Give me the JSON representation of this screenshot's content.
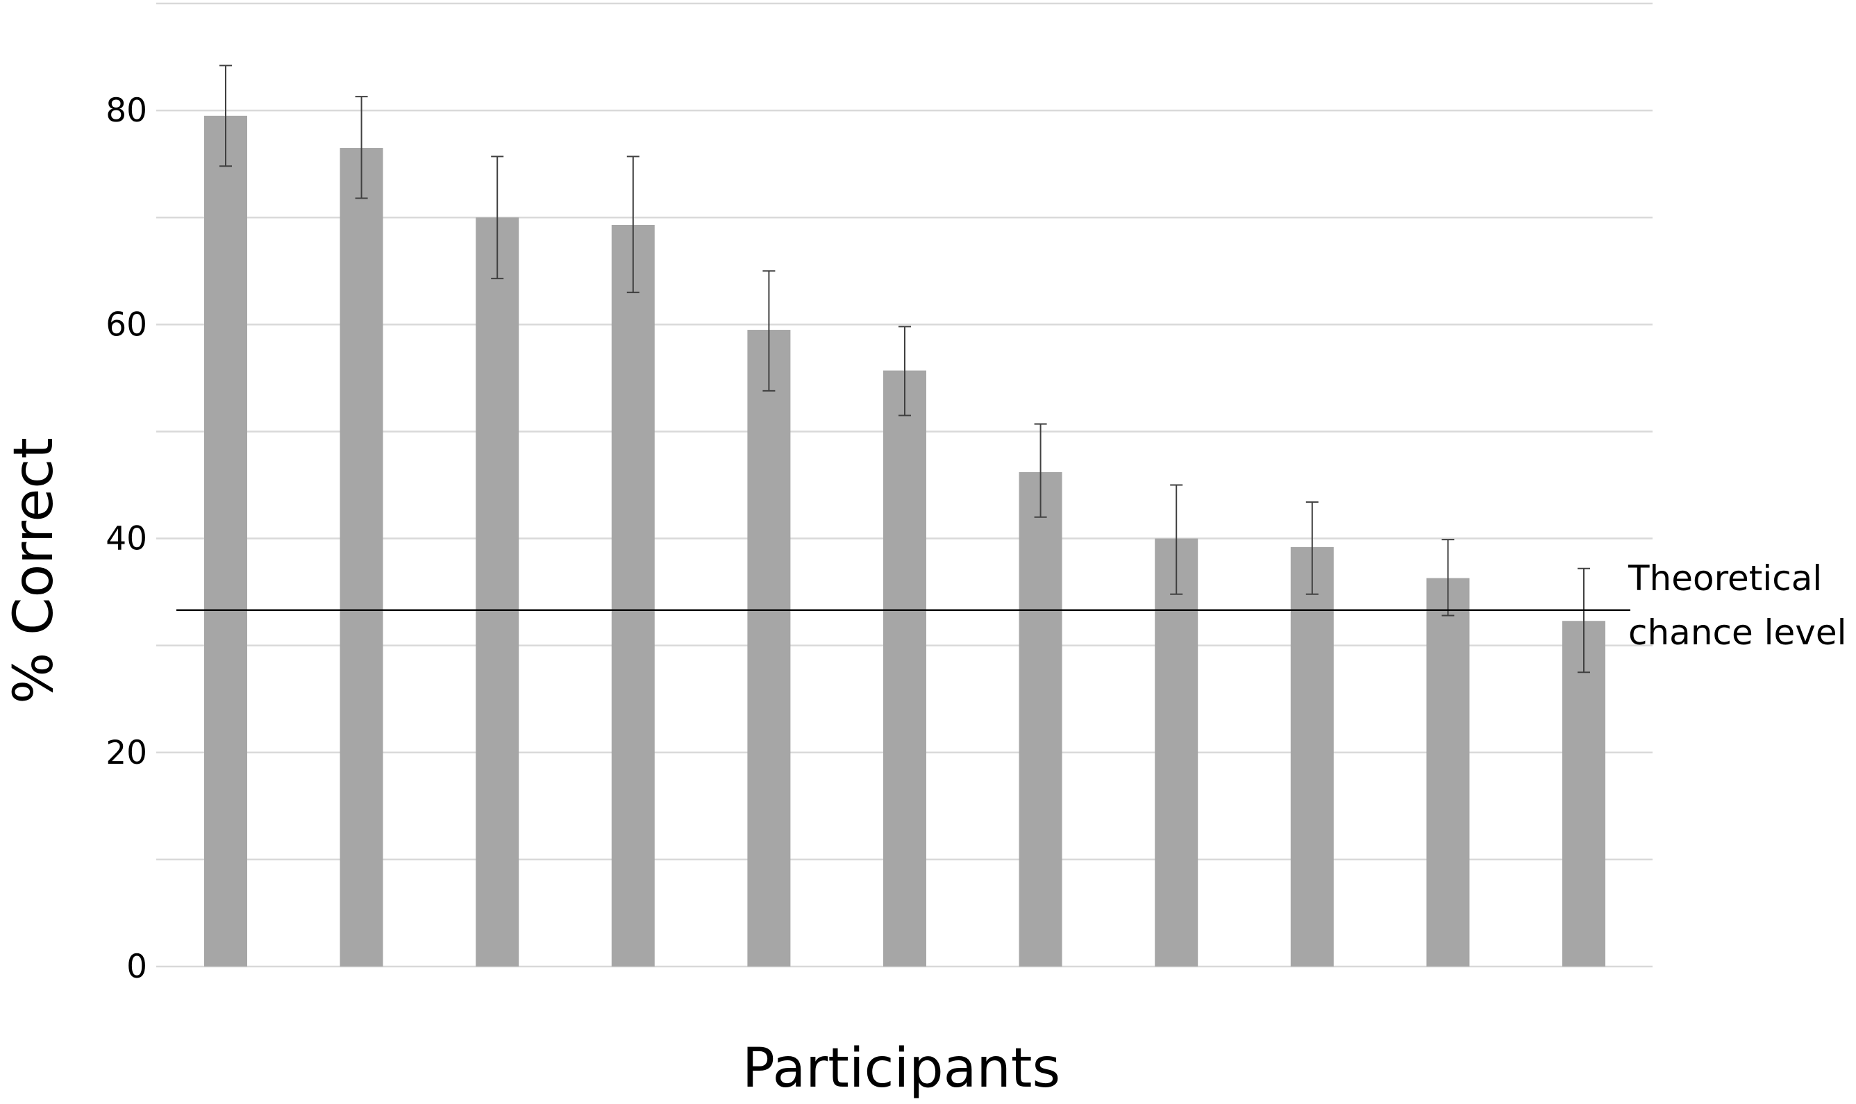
{
  "chart_data": {
    "type": "bar",
    "title": "",
    "xlabel": "Participants",
    "ylabel": "% Correct",
    "ylim": [
      0,
      90
    ],
    "yticks": [
      0,
      20,
      40,
      60,
      80
    ],
    "minor_gridline_step": 10,
    "grid": true,
    "legend": "none",
    "categories": [
      "",
      "",
      "",
      "",
      "",
      "",
      "",
      "",
      "",
      "",
      ""
    ],
    "series": [
      {
        "values": [
          79.5,
          76.5,
          70,
          69.3,
          59.5,
          55.7,
          46.2,
          40,
          39.2,
          36.3,
          32.3
        ],
        "error_low": [
          74.8,
          71.8,
          64.3,
          63,
          53.8,
          51.5,
          42,
          34.8,
          34.8,
          32.8,
          27.5
        ],
        "error_high": [
          84.2,
          81.3,
          75.7,
          75.7,
          65,
          59.8,
          50.7,
          45,
          43.4,
          39.9,
          37.2
        ],
        "color": "#a6a6a6"
      }
    ],
    "reference_line": {
      "value": 33.3,
      "label_line1": "Theoretical",
      "label_line2": "chance level",
      "color": "#000000"
    },
    "gridline_color": "#d9d9d9",
    "error_bar_color": "#404040"
  }
}
